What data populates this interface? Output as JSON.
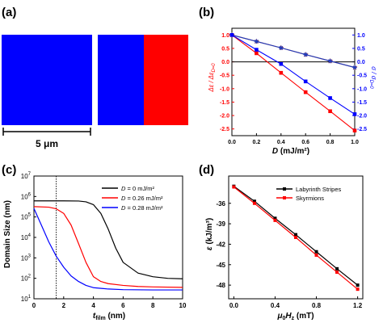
{
  "colors": {
    "blue": "#0000ff",
    "red": "#ff0000",
    "black": "#000000",
    "brown": "#b22222",
    "navy": "#1f3fbf"
  },
  "panels": {
    "a": {
      "label": "(a)",
      "scale_label": "5 μm",
      "left_domain": "blue",
      "right_domains": [
        "blue",
        "red"
      ]
    }
  },
  "chart_data": [
    {
      "panel": "(b)",
      "type": "line",
      "xlabel_prefix": "D",
      "xlabel_unit": " (mJ/m²)",
      "ylabel_left": "Δε / Δε",
      "ylabel_left_sub": "D=0",
      "ylabel_right": "σ / σ",
      "ylabel_right_sub": "D=0",
      "xlim": [
        0,
        1.0
      ],
      "ylim": [
        -2.75,
        1.25
      ],
      "xticks": [
        "0.0",
        "0.2",
        "0.4",
        "0.6",
        "0.8",
        "1.0"
      ],
      "yticks_left": [
        "1.0",
        "0.5",
        "0.0",
        "-0.5",
        "-1.0",
        "-1.5",
        "-2.0",
        "-2.5"
      ],
      "yticks_right": [
        "1.0",
        "0.5",
        "0.0",
        "-0.5",
        "-1.0",
        "-1.5",
        "-2.0",
        "-2.5"
      ],
      "zero_line": true,
      "series": [
        {
          "color": "#b22222",
          "marker": "star",
          "x": [
            0,
            0.2,
            0.4,
            0.6,
            0.8,
            1.0
          ],
          "y": [
            1.0,
            0.76,
            0.52,
            0.27,
            0.03,
            -0.21
          ]
        },
        {
          "color": "#1f3fbf",
          "marker": "asterisk",
          "x": [
            0,
            0.2,
            0.4,
            0.6,
            0.8,
            1.0
          ],
          "y": [
            1.0,
            0.76,
            0.52,
            0.27,
            0.03,
            -0.21
          ]
        },
        {
          "color": "#ff0000",
          "marker": "square",
          "x": [
            0,
            0.2,
            0.4,
            0.6,
            0.8,
            1.0
          ],
          "y": [
            1.0,
            0.32,
            -0.41,
            -1.13,
            -1.84,
            -2.56
          ]
        },
        {
          "color": "#0000ff",
          "marker": "square",
          "x": [
            0,
            0.2,
            0.4,
            0.6,
            0.8,
            1.0
          ],
          "y": [
            1.0,
            0.45,
            -0.08,
            -0.73,
            -1.35,
            -1.95
          ]
        }
      ]
    },
    {
      "panel": "(c)",
      "type": "line",
      "xlabel": "t",
      "xlabel_sub": "film",
      "xlabel_unit": " (nm)",
      "ylabel": "Domain Size (nm)",
      "xlim": [
        0,
        10
      ],
      "ylim_log10": [
        1,
        7
      ],
      "yscale": "log",
      "xticks": [
        "0",
        "2",
        "4",
        "6",
        "8",
        "10"
      ],
      "yticks": [
        {
          "base": "10",
          "exp": "1"
        },
        {
          "base": "10",
          "exp": "2"
        },
        {
          "base": "10",
          "exp": "3"
        },
        {
          "base": "10",
          "exp": "4"
        },
        {
          "base": "10",
          "exp": "5"
        },
        {
          "base": "10",
          "exp": "6"
        },
        {
          "base": "10",
          "exp": "7"
        }
      ],
      "vline_x": 1.5,
      "legend_position": "top-right",
      "series": [
        {
          "name_prefix": "D",
          "name_value": " = 0 mJ/m²",
          "color": "#000000",
          "x": [
            0,
            1,
            2,
            3,
            3.5,
            4,
            4.5,
            5,
            5.5,
            6,
            7,
            8,
            9,
            10
          ],
          "y": [
            610000.0,
            610000.0,
            610000.0,
            600000.0,
            550000.0,
            400000.0,
            150000.0,
            25000.0,
            3000,
            600,
            180,
            120,
            100,
            95
          ]
        },
        {
          "name_prefix": "D",
          "name_value": " = 0.26 mJ/m²",
          "color": "#ff0000",
          "x": [
            0,
            1,
            1.5,
            2,
            2.5,
            3,
            3.5,
            4,
            4.5,
            5,
            6,
            7,
            8,
            10
          ],
          "y": [
            320000.0,
            300000.0,
            250000.0,
            150000.0,
            40000.0,
            5000,
            600,
            120,
            70,
            55,
            45,
            40,
            38,
            36
          ]
        },
        {
          "name_prefix": "D",
          "name_value": " = 0.28 mJ/m²",
          "color": "#0000ff",
          "x": [
            0,
            0.5,
            1,
            1.5,
            2,
            2.5,
            3,
            3.5,
            4,
            5,
            6,
            8,
            10
          ],
          "y": [
            260000.0,
            40000.0,
            6000,
            1200,
            350,
            130,
            70,
            45,
            35,
            30,
            28,
            27,
            27
          ]
        }
      ]
    },
    {
      "panel": "(d)",
      "type": "line",
      "xlabel_prefix": "μ",
      "xlabel_prefix_sub": "0",
      "xlabel_mid": "H",
      "xlabel_mid_sub": "z",
      "xlabel_unit": " (mT)",
      "ylabel_symbol": "ε",
      "ylabel_unit": " (kJ/m³)",
      "xlim": [
        -0.05,
        1.25
      ],
      "ylim": [
        -50,
        -32
      ],
      "xticks": [
        "0.0",
        "0.4",
        "0.8",
        "1.2"
      ],
      "xtick_values": [
        0,
        0.4,
        0.8,
        1.2
      ],
      "yticks": [
        "-36",
        "-39",
        "-42",
        "-45",
        "-48"
      ],
      "ytick_values": [
        -36,
        -39,
        -42,
        -45,
        -48
      ],
      "legend_position": "top-right",
      "series": [
        {
          "name": "Labyrinth Stripes",
          "color": "#000000",
          "x": [
            0,
            0.2,
            0.4,
            0.6,
            0.8,
            1.0,
            1.2
          ],
          "y": [
            -33.5,
            -35.7,
            -38.2,
            -40.6,
            -43.1,
            -45.6,
            -48.0
          ]
        },
        {
          "name": "Skyrmions",
          "color": "#ff0000",
          "x": [
            0,
            0.2,
            0.4,
            0.6,
            0.8,
            1.0,
            1.2
          ],
          "y": [
            -33.6,
            -36.0,
            -38.5,
            -41.0,
            -43.6,
            -46.1,
            -48.6
          ]
        }
      ]
    }
  ]
}
